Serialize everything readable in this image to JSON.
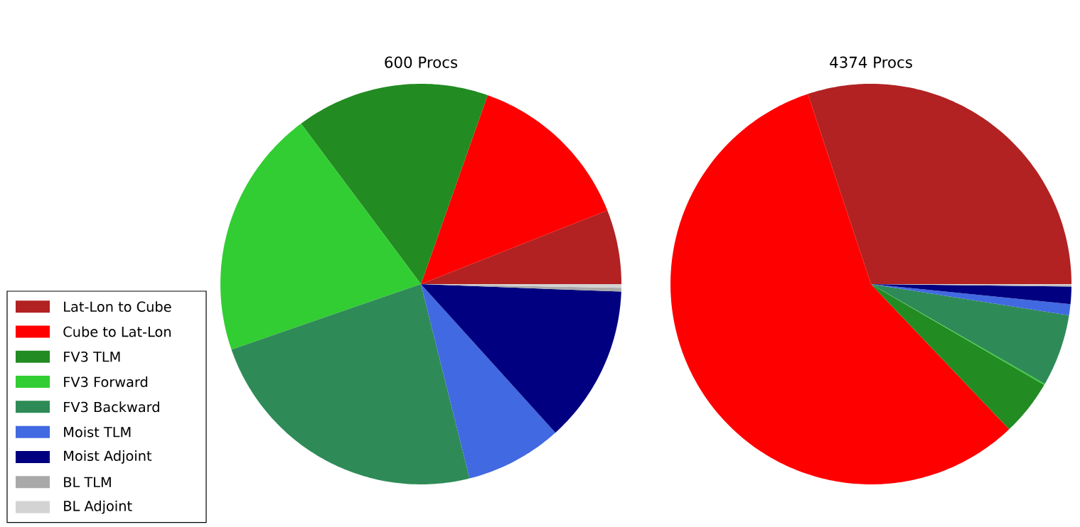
{
  "chart_data": [
    {
      "type": "pie",
      "title": "600 Procs",
      "legend": "left",
      "categories": [
        "Lat-Lon to Cube",
        "Cube to Lat-Lon",
        "FV3 TLM",
        "FV3 Forward",
        "FV3 Backward",
        "Moist TLM",
        "Moist Adjoint",
        "BL TLM",
        "BL Adjoint"
      ],
      "values": [
        6.0,
        13.6,
        15.6,
        20.1,
        23.6,
        7.8,
        12.7,
        0.3,
        0.3
      ],
      "colors": [
        "#b22222",
        "#ff0000",
        "#228b22",
        "#32cd32",
        "#2e8b57",
        "#4169e1",
        "#000080",
        "#a9a9a9",
        "#d3d3d3"
      ]
    },
    {
      "type": "pie",
      "title": "4374 Procs",
      "categories": [
        null,
        null,
        null,
        null,
        null,
        null,
        null,
        null,
        null
      ],
      "values": [
        30.1,
        57.0,
        4.5,
        0.1,
        5.8,
        0.9,
        1.4,
        0.1,
        0.1
      ],
      "colors": [
        "#b22222",
        "#ff0000",
        "#228b22",
        "#32cd32",
        "#2e8b57",
        "#4169e1",
        "#000080",
        "#a9a9a9",
        "#d3d3d3"
      ]
    }
  ]
}
